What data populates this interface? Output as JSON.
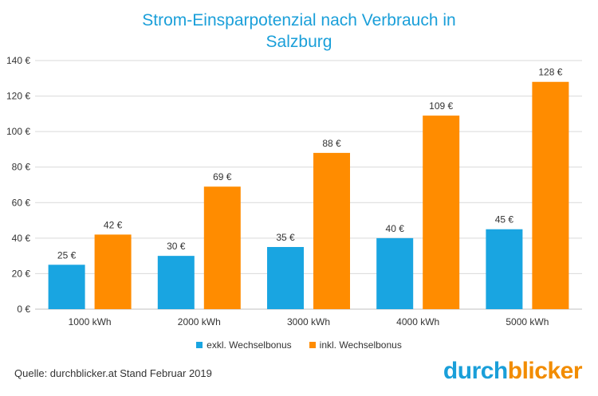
{
  "title_line1": "Strom-Einsparpotenzial  nach Verbrauch in",
  "title_line2": "Salzburg",
  "source": "Quelle: durchblicker.at Stand Februar 2019",
  "brand": {
    "part1": "durch",
    "part2": "blicker",
    "color1": "#1a9fd9",
    "color2": "#f28c00"
  },
  "chart_data": {
    "type": "bar",
    "categories": [
      "1000 kWh",
      "2000 kWh",
      "3000 kWh",
      "4000 kWh",
      "5000 kWh"
    ],
    "series": [
      {
        "name": "exkl. Wechselbonus",
        "values": [
          25,
          30,
          35,
          40,
          45
        ],
        "labels": [
          "25 €",
          "30 €",
          "35 €",
          "40 €",
          "45 €"
        ],
        "color": "#19a5e1"
      },
      {
        "name": "inkl. Wechselbonus",
        "values": [
          42,
          69,
          88,
          109,
          128
        ],
        "labels": [
          "42 €",
          "69 €",
          "88 €",
          "109 €",
          "128 €"
        ],
        "color": "#ff8c00"
      }
    ],
    "ylim": [
      0,
      140
    ],
    "yticks": [
      "0 €",
      "20 €",
      "40 €",
      "60 €",
      "80 €",
      "100 €",
      "120 €",
      "140 €"
    ],
    "grid": true,
    "legend": "bottom-center"
  }
}
